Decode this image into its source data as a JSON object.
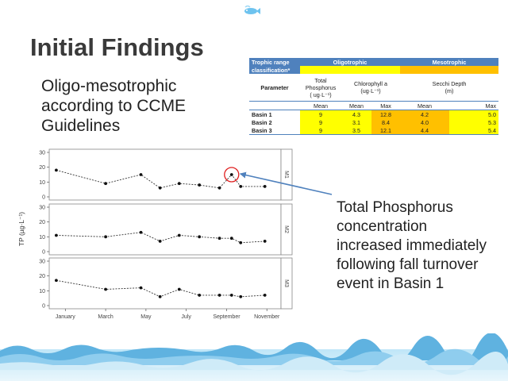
{
  "slide": {
    "title": "Initial Findings",
    "subtitle_lines": [
      "Oligo-mesotrophic",
      "according to CCME",
      "Guidelines"
    ],
    "callout_lines": [
      "Total Phosphorus",
      "concentration",
      "increased immediately",
      "following fall turnover",
      "event in Basin 1"
    ]
  },
  "table": {
    "header_col1_line1": "Trophic range",
    "header_col1_line2": "classification*",
    "oligo": "Oligotrophic",
    "meso": "Mesotrophic",
    "parameter": "Parameter",
    "tp_line1": "Total",
    "tp_line2": "Phosphorus",
    "tp_line3": "( ug·L⁻¹)",
    "chl_line1": "Chlorophyll a",
    "chl_line2": "(ug·L⁻¹)",
    "secchi_line1": "Secchi Depth",
    "secchi_line2": "(m)",
    "mean": "Mean",
    "max": "Max",
    "rows": [
      {
        "name": "Basin 1",
        "tp": "9",
        "chl_mean": "4.3",
        "chl_max": "12.8",
        "sec_mean": "4.2",
        "sec_max": "5.0"
      },
      {
        "name": "Basin 2",
        "tp": "9",
        "chl_mean": "3.1",
        "chl_max": "8.4",
        "sec_mean": "4.0",
        "sec_max": "5.3"
      },
      {
        "name": "Basin 3",
        "tp": "9",
        "chl_mean": "3.5",
        "chl_max": "12.1",
        "sec_mean": "4.4",
        "sec_max": "5.4"
      }
    ]
  },
  "chart_data": {
    "type": "line",
    "ylabel": "TP (µg·L⁻¹)",
    "xlabel": "",
    "x_ticks": [
      "January",
      "March",
      "May",
      "July",
      "September",
      "November"
    ],
    "x_tick_months": [
      1,
      3,
      5,
      7,
      9,
      11
    ],
    "y_ticks": [
      0,
      10,
      20,
      30
    ],
    "ylim": [
      0,
      30
    ],
    "xlim": [
      0.2,
      11.7
    ],
    "panels": [
      {
        "label": "M1",
        "x": [
          0.55,
          3.0,
          4.75,
          5.7,
          6.65,
          7.65,
          8.65,
          9.25,
          9.7,
          10.9
        ],
        "y": [
          18,
          9,
          15,
          6,
          9,
          8,
          6,
          15,
          7,
          7
        ],
        "highlight_index": 7
      },
      {
        "label": "M2",
        "x": [
          0.55,
          3.0,
          4.75,
          5.7,
          6.65,
          7.65,
          8.65,
          9.25,
          9.7,
          10.9
        ],
        "y": [
          11,
          10,
          13,
          7,
          11,
          10,
          9,
          9,
          6,
          7
        ]
      },
      {
        "label": "M3",
        "x": [
          0.55,
          3.0,
          4.75,
          5.7,
          6.65,
          7.65,
          8.65,
          9.25,
          9.7,
          10.9
        ],
        "y": [
          17,
          11,
          12,
          6,
          11,
          7,
          7,
          7,
          6,
          7
        ]
      }
    ]
  },
  "colors": {
    "accent": "#4f81bd",
    "oligo": "#ffff00",
    "meso": "#ffc000",
    "highlight": "#e02020"
  }
}
